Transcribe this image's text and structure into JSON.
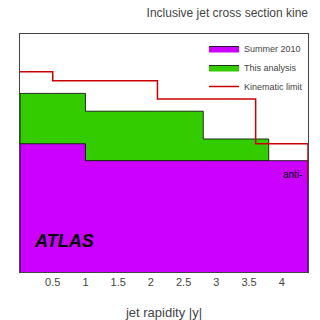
{
  "chart_data": {
    "type": "step",
    "title": "Inclusive jet cross section kine",
    "x_label": "jet rapidity |y|",
    "log": "y",
    "grid": false,
    "legend": "upper right",
    "tick_labels": "x",
    "xlim": [
      0.0,
      4.4
    ],
    "xticks": [
      0.5,
      1,
      1.5,
      2,
      2.5,
      3,
      3.5,
      4
    ],
    "ylim": [
      10,
      20000
    ],
    "yticks": [],
    "annotations": [
      "anti-",
      "ATLAS"
    ],
    "series": [
      {
        "name": "Summer 2010",
        "type": "area",
        "color": "#cc00ff",
        "x": [
          0.0,
          0.3,
          1.0,
          2.8,
          4.4
        ],
        "values": [
          600,
          600,
          350,
          350,
          350
        ]
      },
      {
        "name": "This analysis",
        "type": "area",
        "color": "#33cc00",
        "x": [
          0.0,
          0.5,
          1.0,
          2.1,
          2.8,
          3.6,
          3.8,
          4.4
        ],
        "values": [
          3000,
          3000,
          1700,
          1700,
          700,
          700,
          120,
          120
        ]
      },
      {
        "name": "Kinematic limit",
        "type": "line",
        "color": "#cc0000",
        "x": [
          0.0,
          0.3,
          0.5,
          1.0,
          2.1,
          2.8,
          3.6,
          3.8,
          4.4
        ],
        "values": [
          6000,
          6000,
          4500,
          4500,
          2500,
          2500,
          600,
          600,
          200
        ]
      }
    ]
  }
}
